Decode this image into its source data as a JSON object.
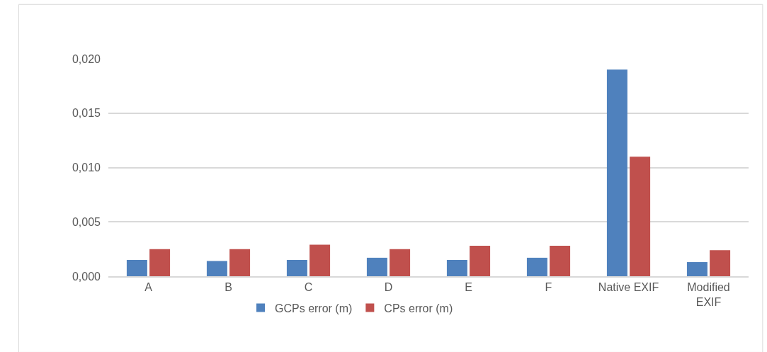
{
  "chart_data": {
    "type": "bar",
    "categories": [
      "A",
      "B",
      "C",
      "D",
      "E",
      "F",
      "Native EXIF",
      "Modified EXIF"
    ],
    "series": [
      {
        "name": "GCPs error (m)",
        "color": "#4f81bd",
        "values": [
          0.0015,
          0.0014,
          0.0015,
          0.0017,
          0.0015,
          0.0017,
          0.019,
          0.0013
        ]
      },
      {
        "name": "CPs error (m)",
        "color": "#c0504d",
        "values": [
          0.0025,
          0.0025,
          0.0029,
          0.0025,
          0.0028,
          0.0028,
          0.011,
          0.0024
        ]
      }
    ],
    "ylim": [
      0,
      0.02
    ],
    "yticks": [
      {
        "value": 0,
        "label": "0,000"
      },
      {
        "value": 0.005,
        "label": "0,005"
      },
      {
        "value": 0.01,
        "label": "0,010"
      },
      {
        "value": 0.015,
        "label": "0,015"
      },
      {
        "value": 0.02,
        "label": "0,020"
      }
    ],
    "grid": "y",
    "legend": "bottom"
  }
}
